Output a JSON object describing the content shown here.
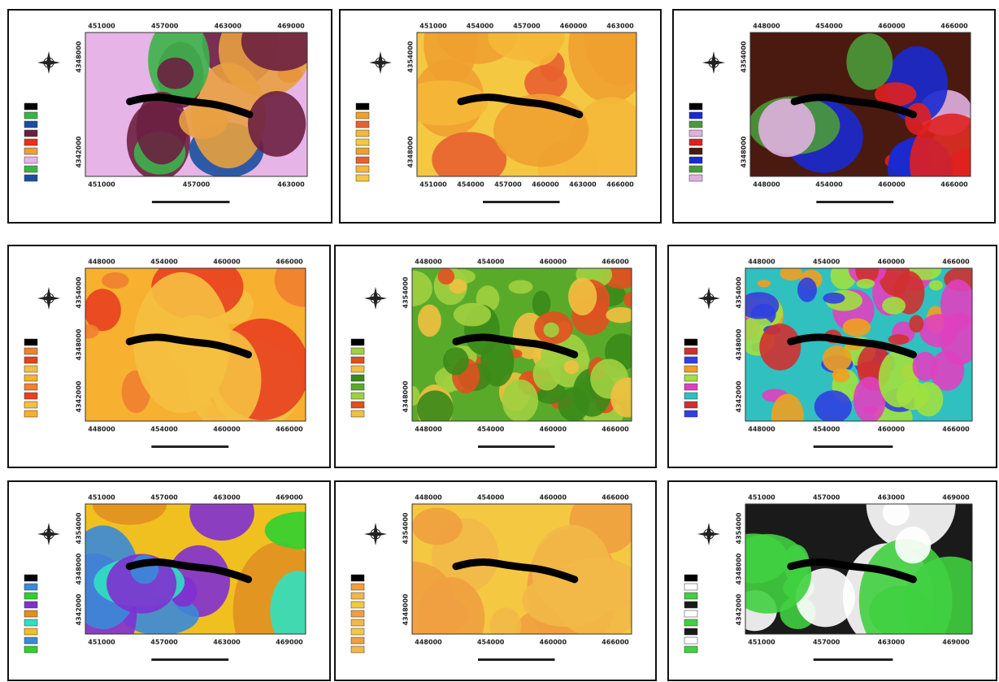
{
  "panels": [
    {
      "top_ticks": [
        "451000",
        "457000",
        "463000",
        "469000"
      ],
      "bottom_ticks": [
        "451000",
        "457000",
        "463000"
      ],
      "y_ticks": [
        "4348000",
        "4342000"
      ]
    },
    {
      "top_ticks": [
        "451000",
        "454000",
        "457000",
        "460000",
        "463000"
      ],
      "bottom_ticks": [
        "451000",
        "454000",
        "457000",
        "460000",
        "463000",
        "466000"
      ],
      "y_ticks": [
        "4354000",
        "4348000"
      ]
    },
    {
      "top_ticks": [
        "448000",
        "454000",
        "460000",
        "466000"
      ],
      "bottom_ticks": [
        "448000",
        "454000",
        "460000",
        "466000"
      ],
      "y_ticks": [
        "4354000",
        "4348000"
      ]
    },
    {
      "top_ticks": [
        "448000",
        "454000",
        "460000",
        "466000"
      ],
      "bottom_ticks": [
        "448000",
        "454000",
        "460000",
        "466000"
      ],
      "y_ticks": [
        "4354000",
        "4348000",
        "4342000"
      ]
    },
    {
      "top_ticks": [
        "448000",
        "454000",
        "460000",
        "466000"
      ],
      "bottom_ticks": [
        "448000",
        "454000",
        "460000",
        "466000"
      ],
      "y_ticks": [
        "4354000",
        "4348000"
      ]
    },
    {
      "top_ticks": [
        "448000",
        "454000",
        "460000",
        "466000"
      ],
      "bottom_ticks": [
        "448000",
        "454000",
        "460000",
        "466000"
      ],
      "y_ticks": [
        "4354000",
        "4348000",
        "4342000"
      ]
    },
    {
      "top_ticks": [
        "451000",
        "457000",
        "463000",
        "469000"
      ],
      "bottom_ticks": [
        "451000",
        "457000",
        "463000",
        "469000"
      ],
      "y_ticks": [
        "4354000",
        "4348000",
        "4342000"
      ]
    },
    {
      "top_ticks": [
        "448000",
        "454000",
        "460000",
        "466000"
      ],
      "bottom_ticks": [
        "448000",
        "454000",
        "460000",
        "466000"
      ],
      "y_ticks": [
        "4354000",
        "4348000"
      ]
    },
    {
      "top_ticks": [
        "451000",
        "457000",
        "463000",
        "469000"
      ],
      "bottom_ticks": [
        "451000",
        "457000",
        "463000",
        "469000"
      ],
      "y_ticks": [
        "4354000",
        "4348000",
        "4342000"
      ]
    }
  ]
}
